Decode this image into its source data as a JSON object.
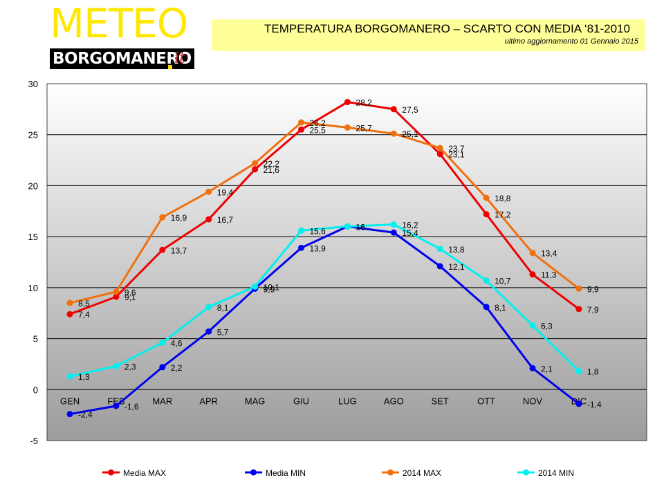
{
  "logo": {
    "meteo": "METEO",
    "bar_text": "BORGOMANERO",
    "suffix": "it"
  },
  "title": {
    "main": "TEMPERATURA BORGOMANERO – SCARTO CON MEDIA ‘81-2010",
    "subtitle": "ultimo aggiornamento  01 Gennaio 2015"
  },
  "chart_data": {
    "type": "line",
    "title": "TEMPERATURA BORGOMANERO – SCARTO CON MEDIA ‘81-2010",
    "categories": [
      "GEN",
      "FEB",
      "MAR",
      "APR",
      "MAG",
      "GIU",
      "LUG",
      "AGO",
      "SET",
      "OTT",
      "NOV",
      "DIC"
    ],
    "ylim": [
      -5,
      30
    ],
    "yticks": [
      -5,
      0,
      5,
      10,
      15,
      20,
      25,
      30
    ],
    "grid": true,
    "legend_position": "bottom",
    "series": [
      {
        "name": "Media MAX",
        "color": "#ee0000",
        "values": [
          7.4,
          9.1,
          13.7,
          16.7,
          21.6,
          25.5,
          28.2,
          27.5,
          23.1,
          17.2,
          11.3,
          7.9
        ],
        "labels": [
          "7,4",
          "9,1",
          "13,7",
          "16,7",
          "21,6",
          "25,5",
          "28,2",
          "27,5",
          "23,1",
          "17,2",
          "11,3",
          "7,9"
        ]
      },
      {
        "name": "Media MIN",
        "color": "#0000ee",
        "values": [
          -2.4,
          -1.6,
          2.2,
          5.7,
          9.9,
          13.9,
          16,
          15.4,
          12.1,
          8.1,
          2.1,
          -1.4
        ],
        "labels": [
          "-2,4",
          "-1,6",
          "2,2",
          "5,7",
          "9,9",
          "13,9",
          "16",
          "15,4",
          "12,1",
          "8,1",
          "2,1",
          "-1,4"
        ]
      },
      {
        "name": "2014 MAX",
        "color": "#f07010",
        "values": [
          8.5,
          9.6,
          16.9,
          19.4,
          22.2,
          26.2,
          25.7,
          25.1,
          23.7,
          18.8,
          13.4,
          9.9
        ],
        "labels": [
          "8,5",
          "9,6",
          "16,9",
          "19,4",
          "22,2",
          "26,2",
          "25,7",
          "25,1",
          "23,7",
          "18,8",
          "13,4",
          "9,9"
        ]
      },
      {
        "name": "2014 MIN",
        "color": "#00f0f0",
        "values": [
          1.3,
          2.3,
          4.6,
          8.1,
          10.1,
          15.6,
          16,
          16.2,
          13.8,
          10.7,
          6.3,
          1.8
        ],
        "labels": [
          "1,3",
          "2,3",
          "4,6",
          "8,1",
          "10,1",
          "15,6",
          "16",
          "16,2",
          "13,8",
          "10,7",
          "6,3",
          "1,8"
        ]
      }
    ]
  }
}
